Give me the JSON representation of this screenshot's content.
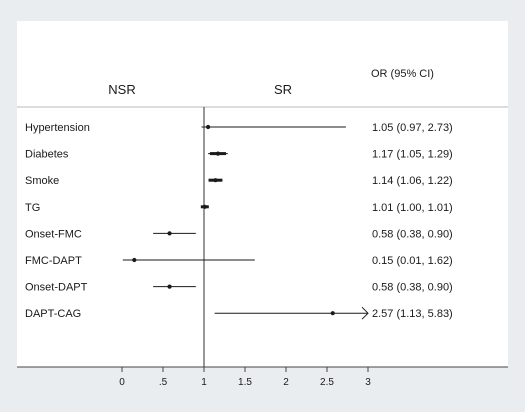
{
  "chart_data": {
    "type": "forest",
    "side_labels": {
      "left": "NSR",
      "right": "SR"
    },
    "column_header": "OR (95% CI)",
    "reference_line": 1,
    "xlim": [
      0,
      3
    ],
    "x_ticks": [
      {
        "value": 0,
        "label": "0"
      },
      {
        "value": 0.5,
        "label": ".5"
      },
      {
        "value": 1,
        "label": "1"
      },
      {
        "value": 1.5,
        "label": "1.5"
      },
      {
        "value": 2,
        "label": "2"
      },
      {
        "value": 2.5,
        "label": "2.5"
      },
      {
        "value": 3,
        "label": "3"
      }
    ],
    "rows": [
      {
        "label": "Hypertension",
        "or": 1.05,
        "lo": 0.97,
        "hi": 2.73,
        "text": "1.05 (0.97, 2.73)"
      },
      {
        "label": "Diabetes",
        "or": 1.17,
        "lo": 1.05,
        "hi": 1.29,
        "text": "1.17 (1.05, 1.29)"
      },
      {
        "label": "Smoke",
        "or": 1.14,
        "lo": 1.06,
        "hi": 1.22,
        "text": "1.14 (1.06, 1.22)"
      },
      {
        "label": "TG",
        "or": 1.01,
        "lo": 1.0,
        "hi": 1.01,
        "text": "1.01 (1.00, 1.01)"
      },
      {
        "label": "Onset-FMC",
        "or": 0.58,
        "lo": 0.38,
        "hi": 0.9,
        "text": "0.58 (0.38, 0.90)"
      },
      {
        "label": "FMC-DAPT",
        "or": 0.15,
        "lo": 0.01,
        "hi": 1.62,
        "text": "0.15 (0.01, 1.62)"
      },
      {
        "label": "Onset-DAPT",
        "or": 0.58,
        "lo": 0.38,
        "hi": 0.9,
        "text": "0.58 (0.38, 0.90)"
      },
      {
        "label": "DAPT-CAG",
        "or": 2.57,
        "lo": 1.13,
        "hi": 5.83,
        "text": "2.57 (1.13, 5.83)",
        "truncated_right": true
      }
    ],
    "colors": {
      "outer_background": "#e9edf0",
      "panel": "#ffffff",
      "ink": "#1a1a1a",
      "axis": "#444444"
    }
  }
}
